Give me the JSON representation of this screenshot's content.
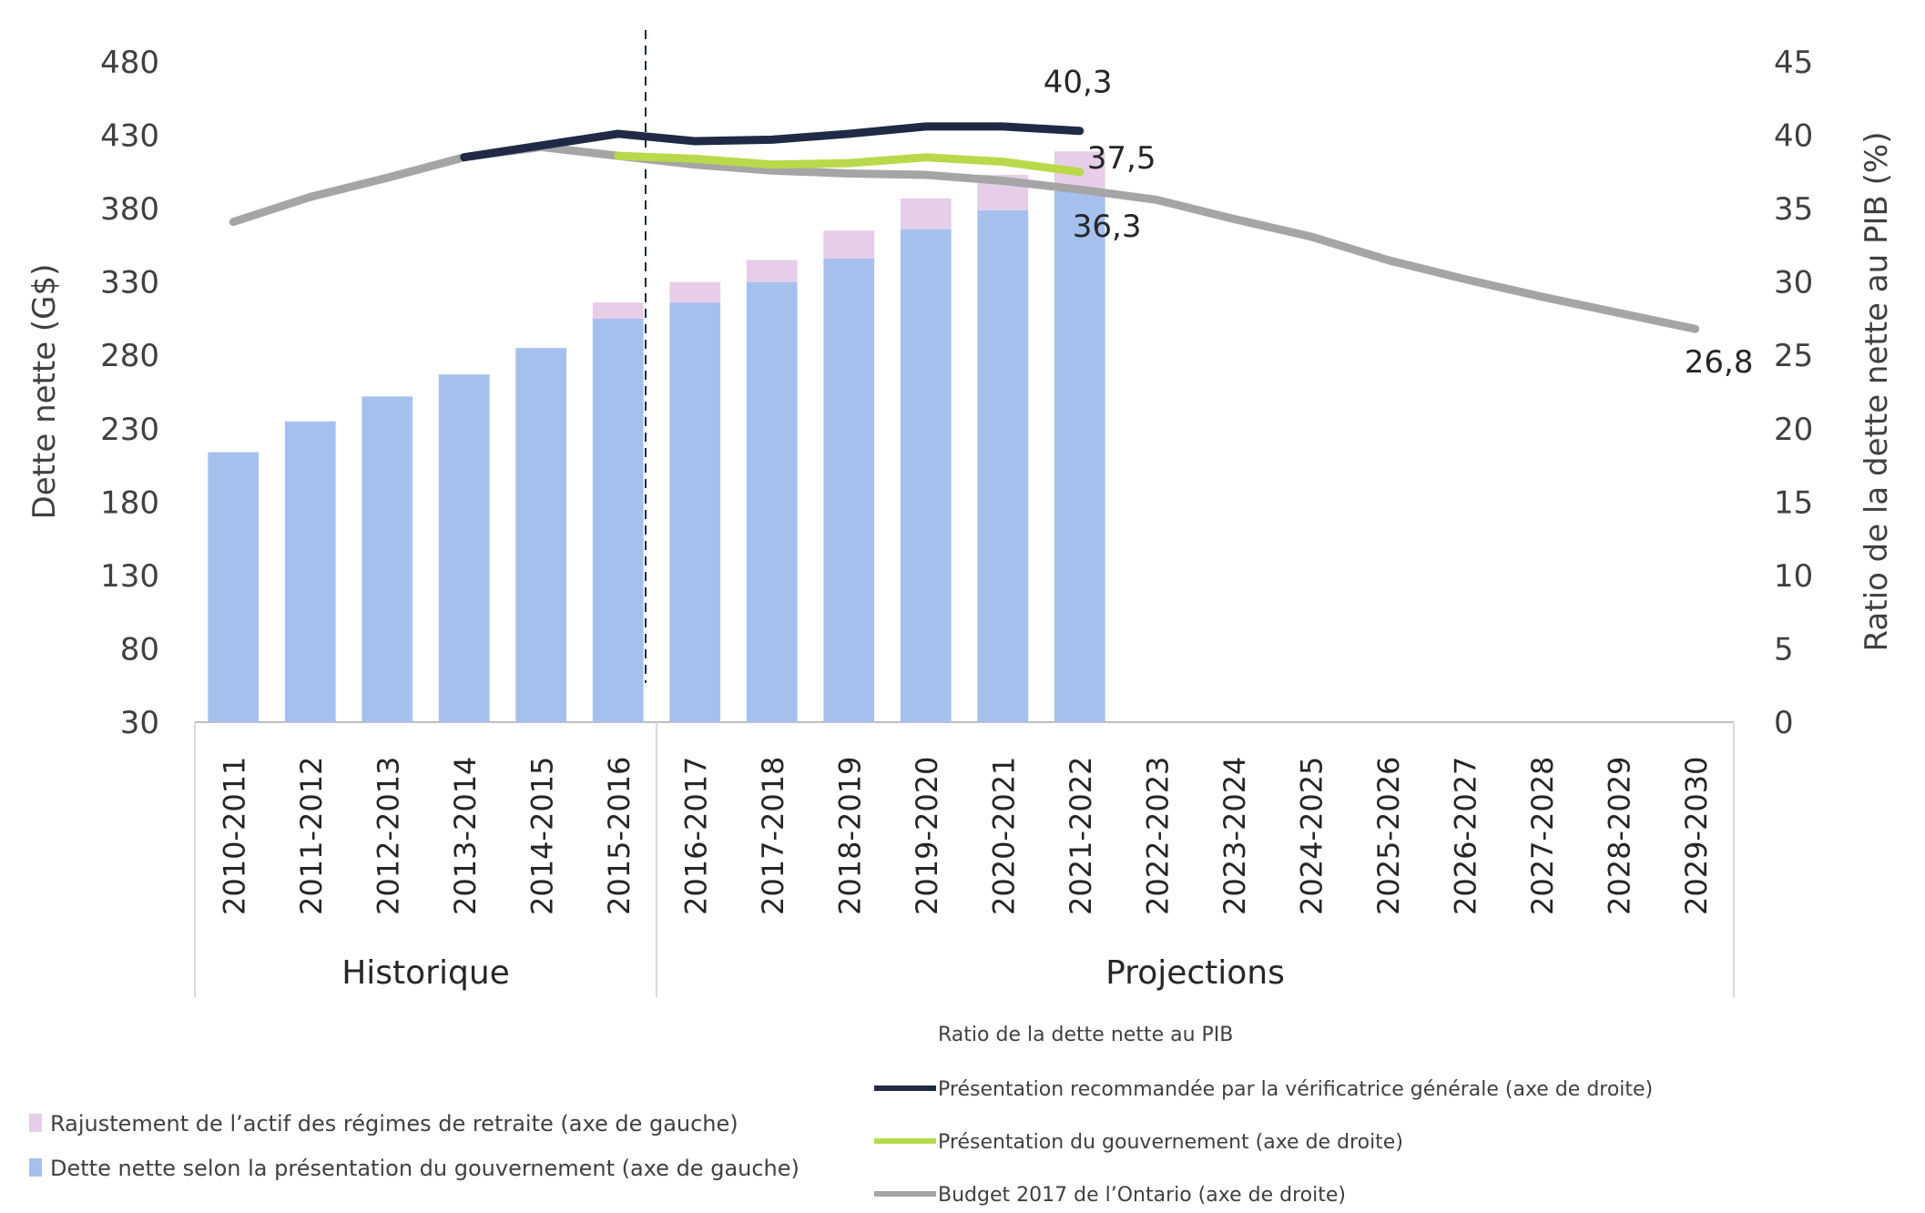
{
  "chart_data": {
    "type": "bar+line",
    "categories": [
      "2010-2011",
      "2011-2012",
      "2012-2013",
      "2013-2014",
      "2014-2015",
      "2015-2016",
      "2016-2017",
      "2017-2018",
      "2018-2019",
      "2019-2020",
      "2020-2021",
      "2021-2022",
      "2022-2023",
      "2023-2024",
      "2024-2025",
      "2025-2026",
      "2026-2027",
      "2027-2028",
      "2028-2029",
      "2029-2030"
    ],
    "groups": [
      {
        "label": "Historique",
        "span": 6
      },
      {
        "label": "Projections",
        "span": 14
      }
    ],
    "left_axis": {
      "label": "Dette nette (G$)",
      "ylim": [
        30,
        480
      ],
      "ticks": [
        "30",
        "80",
        "130",
        "180",
        "230",
        "280",
        "330",
        "380",
        "430",
        "480"
      ]
    },
    "right_axis": {
      "label": "Ratio de la dette nette au PIB (%)",
      "ylim": [
        0,
        45
      ],
      "ticks": [
        "0",
        "5",
        "10",
        "15",
        "20",
        "25",
        "30",
        "35",
        "40",
        "45"
      ]
    },
    "bar_series": [
      {
        "name": "Dette nette selon la présentation du gouvernement (axe de gauche)",
        "color": "#A6C0EE",
        "axis": "left",
        "values": [
          214,
          235,
          252,
          267,
          285,
          305,
          316,
          330,
          346,
          366,
          379,
          392,
          null,
          null,
          null,
          null,
          null,
          null,
          null,
          null
        ]
      },
      {
        "name": "Rajustement de l’actif des régimes de retraite (axe de gauche)",
        "color": "#E6CDE8",
        "axis": "left",
        "values": [
          null,
          null,
          null,
          null,
          null,
          11,
          14,
          15,
          19,
          21,
          24,
          27,
          null,
          null,
          null,
          null,
          null,
          null,
          null,
          null
        ]
      }
    ],
    "line_legend_title": "Ratio de la dette nette au PIB",
    "line_series": [
      {
        "name": "Présentation recommandée par la vérificatrice générale (axe de droite)",
        "color": "#1F2A44",
        "axis": "right",
        "values": [
          null,
          null,
          null,
          38.5,
          39.3,
          40.1,
          39.6,
          39.7,
          40.1,
          40.6,
          40.6,
          40.3,
          null,
          null,
          null,
          null,
          null,
          null,
          null,
          null
        ],
        "end_label": "40,3"
      },
      {
        "name": "Présentation du gouvernement (axe de droite)",
        "color": "#B9D94A",
        "axis": "right",
        "values": [
          null,
          null,
          null,
          null,
          null,
          38.6,
          38.4,
          38.0,
          38.1,
          38.5,
          38.2,
          37.5,
          null,
          null,
          null,
          null,
          null,
          null,
          null,
          null
        ],
        "end_label": "37,5"
      },
      {
        "name": "Budget 2017 de l’Ontario (axe de droite)",
        "color": "#A5A5A5",
        "axis": "right",
        "values": [
          34.1,
          35.8,
          37.1,
          38.5,
          39.2,
          38.6,
          38.0,
          37.6,
          37.4,
          37.3,
          36.9,
          36.3,
          35.6,
          34.3,
          33.1,
          31.5,
          30.2,
          29.0,
          27.9,
          26.8
        ],
        "labels": {
          "11": "36,3",
          "19": "26,8"
        }
      }
    ],
    "divider_after": "2015-2016"
  }
}
